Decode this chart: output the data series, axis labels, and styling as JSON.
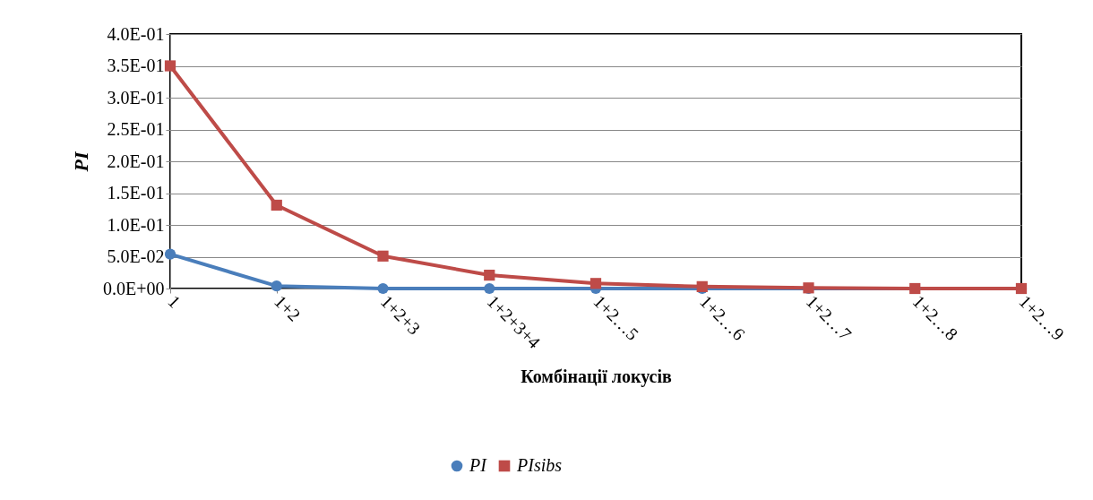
{
  "chart_data": {
    "type": "line",
    "xlabel": "Комбінації локусів",
    "ylabel": "PI",
    "categories": [
      "1",
      "1+2",
      "1+2+3",
      "1+2+3+4",
      "1+2…5",
      "1+2…6",
      "1+2…7",
      "1+2…8",
      "1+2…9"
    ],
    "series": [
      {
        "name": "PI",
        "color": "#4a7ebb",
        "marker": "circle",
        "values": [
          0.054,
          0.004,
          0,
          0,
          0,
          0,
          0,
          0,
          0
        ]
      },
      {
        "name": "PIsibs",
        "color": "#be4b48",
        "marker": "square",
        "values": [
          0.35,
          0.131,
          0.051,
          0.021,
          0.008,
          0.003,
          0.001,
          0,
          0
        ]
      }
    ],
    "ylim": [
      0,
      0.4
    ],
    "yticks": [
      {
        "value": 0,
        "label": "0.0E+00"
      },
      {
        "value": 0.05,
        "label": "5.0E-02"
      },
      {
        "value": 0.1,
        "label": "1.0E-01"
      },
      {
        "value": 0.15,
        "label": "1.5E-01"
      },
      {
        "value": 0.2,
        "label": "2.0E-01"
      },
      {
        "value": 0.25,
        "label": "2.5E-01"
      },
      {
        "value": 0.3,
        "label": "3.0E-01"
      },
      {
        "value": 0.35,
        "label": "3.5E-01"
      },
      {
        "value": 0.4,
        "label": "4.0E-01"
      }
    ],
    "grid": "y",
    "legend": "bottom",
    "line_style": "solid"
  }
}
